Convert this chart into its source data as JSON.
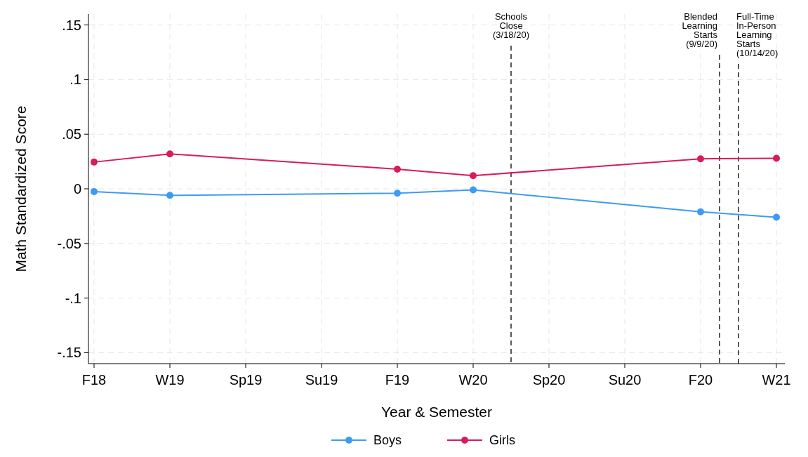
{
  "chart_data": {
    "type": "line",
    "xlabel": "Year & Semester",
    "ylabel": "Math Standardized Score",
    "categories": [
      "F18",
      "W19",
      "Sp19",
      "Su19",
      "F19",
      "W20",
      "Sp20",
      "Su20",
      "F20",
      "W21"
    ],
    "ylim": [
      -0.16,
      0.16
    ],
    "yticks": [
      {
        "value": -0.15,
        "label": "-.15"
      },
      {
        "value": -0.1,
        "label": "-.1"
      },
      {
        "value": -0.05,
        "label": "-.05"
      },
      {
        "value": 0,
        "label": "0"
      },
      {
        "value": 0.05,
        "label": ".05"
      },
      {
        "value": 0.1,
        "label": ".1"
      },
      {
        "value": 0.15,
        "label": ".15"
      }
    ],
    "series": [
      {
        "name": "Boys",
        "color": "#3d9bf5",
        "values": [
          -0.0025,
          -0.006,
          null,
          null,
          -0.004,
          -0.001,
          null,
          null,
          -0.021,
          -0.026
        ]
      },
      {
        "name": "Girls",
        "color": "#d81b5c",
        "values": [
          0.0245,
          0.032,
          null,
          null,
          0.018,
          0.012,
          null,
          null,
          0.0275,
          0.028
        ]
      }
    ],
    "annotations": [
      "Schools\nClose\n(3/18/20)",
      "Blended\nLearning\nStarts\n(9/9/20)",
      "Full-Time\nIn-Person\nLearning\nStarts\n(10/14/20)"
    ],
    "grid": true,
    "legend": "bottom",
    "marker": "circle",
    "line_style": "solid"
  }
}
